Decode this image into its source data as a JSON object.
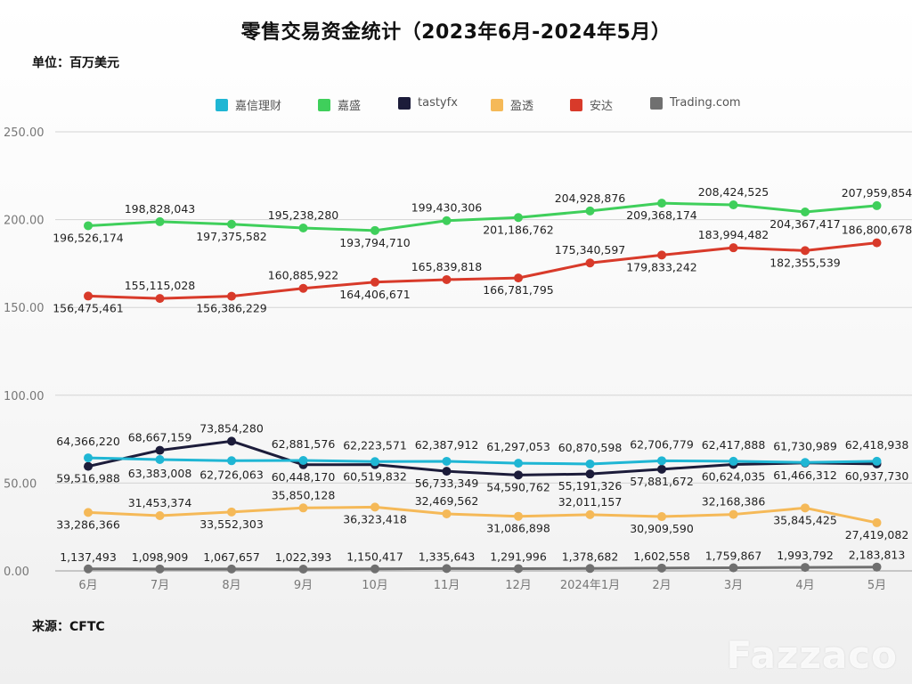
{
  "title": "零售交易资金统计（2023年6月-2024年5月）",
  "unit_label": "单位：百万美元",
  "source_label": "来源：CFTC",
  "watermark": "Fazzaco",
  "chart_data": {
    "type": "line",
    "title": "零售交易资金统计（2023年6月-2024年5月）",
    "ylabel": "单位：百万美元",
    "xlabel": "",
    "ylim": [
      0,
      250
    ],
    "yticks": [
      "0.00",
      "50.00",
      "100.00",
      "150.00",
      "200.00",
      "250.00"
    ],
    "grid": true,
    "legend_position": "top",
    "categories": [
      "6月",
      "7月",
      "8月",
      "9月",
      "10月",
      "11月",
      "12月",
      "2024年1月",
      "2月",
      "3月",
      "4月",
      "5月"
    ],
    "series": [
      {
        "name": "嘉信理财",
        "color": "#1fb6d4",
        "values": [
          64.36622,
          63.383008,
          62.726063,
          62.881576,
          62.223571,
          62.387912,
          61.297053,
          60.870598,
          62.706779,
          62.417888,
          61.730989,
          62.418938
        ],
        "labels": [
          "64,366,220",
          "63,383,008",
          "62,726,063",
          "62,881,576",
          "62,223,571",
          "62,387,912",
          "61,297,053",
          "60,870,598",
          "62,706,779",
          "62,417,888",
          "61,730,989",
          "62,418,938"
        ]
      },
      {
        "name": "嘉盛",
        "color": "#3fcf5b",
        "values": [
          196.526174,
          198.828043,
          197.375582,
          195.23828,
          193.79471,
          199.430306,
          201.186762,
          204.928876,
          209.368174,
          208.424525,
          204.367417,
          207.959854
        ],
        "labels": [
          "196,526,174",
          "198,828,043",
          "197,375,582",
          "195,238,280",
          "193,794,710",
          "199,430,306",
          "201,186,762",
          "204,928,876",
          "209,368,174",
          "208,424,525",
          "204,367,417",
          "207,959,854"
        ]
      },
      {
        "name": "tastyfx",
        "color": "#1c1c3a",
        "values": [
          59.516988,
          68.667159,
          73.85428,
          60.44817,
          60.519832,
          56.733349,
          54.590762,
          55.191326,
          57.881672,
          60.624035,
          61.466312,
          60.93773
        ],
        "labels": [
          "59,516,988",
          "68,667,159",
          "73,854,280",
          "60,448,170",
          "60,519,832",
          "56,733,349",
          "54,590,762",
          "55,191,326",
          "57,881,672",
          "60,624,035",
          "61,466,312",
          "60,937,730"
        ]
      },
      {
        "name": "盈透",
        "color": "#f5b958",
        "values": [
          33.286366,
          31.453374,
          33.552303,
          35.850128,
          36.323418,
          32.469562,
          31.086898,
          32.011157,
          30.90959,
          32.168386,
          35.845425,
          27.419082
        ],
        "labels": [
          "33,286,366",
          "31,453,374",
          "33,552,303",
          "35,850,128",
          "36,323,418",
          "32,469,562",
          "31,086,898",
          "32,011,157",
          "30,909,590",
          "32,168,386",
          "35,845,425",
          "27,419,082"
        ]
      },
      {
        "name": "安达",
        "color": "#d83a2a",
        "values": [
          156.475461,
          155.115028,
          156.386229,
          160.885922,
          164.406671,
          165.839818,
          166.781795,
          175.340597,
          179.833242,
          183.994482,
          182.355539,
          186.800678
        ],
        "labels": [
          "156,475,461",
          "155,115,028",
          "156,386,229",
          "160,885,922",
          "164,406,671",
          "165,839,818",
          "166,781,795",
          "175,340,597",
          "179,833,242",
          "183,994,482",
          "182,355,539",
          "186,800,678"
        ]
      },
      {
        "name": "Trading.com",
        "color": "#707070",
        "values": [
          1.137493,
          1.098909,
          1.067657,
          1.022393,
          1.150417,
          1.335643,
          1.291996,
          1.378682,
          1.602558,
          1.759867,
          1.993792,
          2.183813
        ],
        "labels": [
          "1,137,493",
          "1,098,909",
          "1,067,657",
          "1,022,393",
          "1,150,417",
          "1,335,643",
          "1,291,996",
          "1,378,682",
          "1,602,558",
          "1,759,867",
          "1,993,792",
          "2,183,813"
        ]
      }
    ]
  }
}
